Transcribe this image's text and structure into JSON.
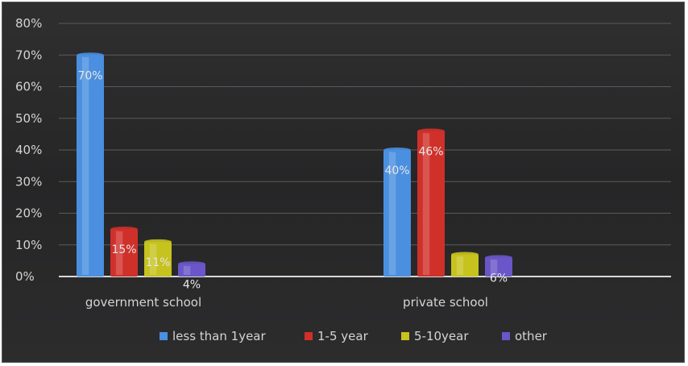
{
  "chart_data": {
    "type": "bar",
    "categories": [
      "government school",
      "private school"
    ],
    "series": [
      {
        "name": "less than 1year",
        "values": [
          70,
          40
        ],
        "color": "#4a8fe0"
      },
      {
        "name": "1-5 year",
        "values": [
          15,
          46
        ],
        "color": "#d0302a"
      },
      {
        "name": "5-10year",
        "values": [
          11,
          7
        ],
        "color": "#c6c21e"
      },
      {
        "name": "other",
        "values": [
          4,
          6
        ],
        "color": "#6a56c8"
      }
    ],
    "data_labels": [
      [
        "70%",
        "40%"
      ],
      [
        "15%",
        "46%"
      ],
      [
        "11%",
        ""
      ],
      [
        "4%",
        "6%"
      ]
    ],
    "yticks": [
      "0%",
      "10%",
      "20%",
      "30%",
      "40%",
      "50%",
      "60%",
      "70%",
      "80%"
    ],
    "ylim": [
      0,
      80
    ],
    "grid": true,
    "legend_position": "bottom"
  }
}
